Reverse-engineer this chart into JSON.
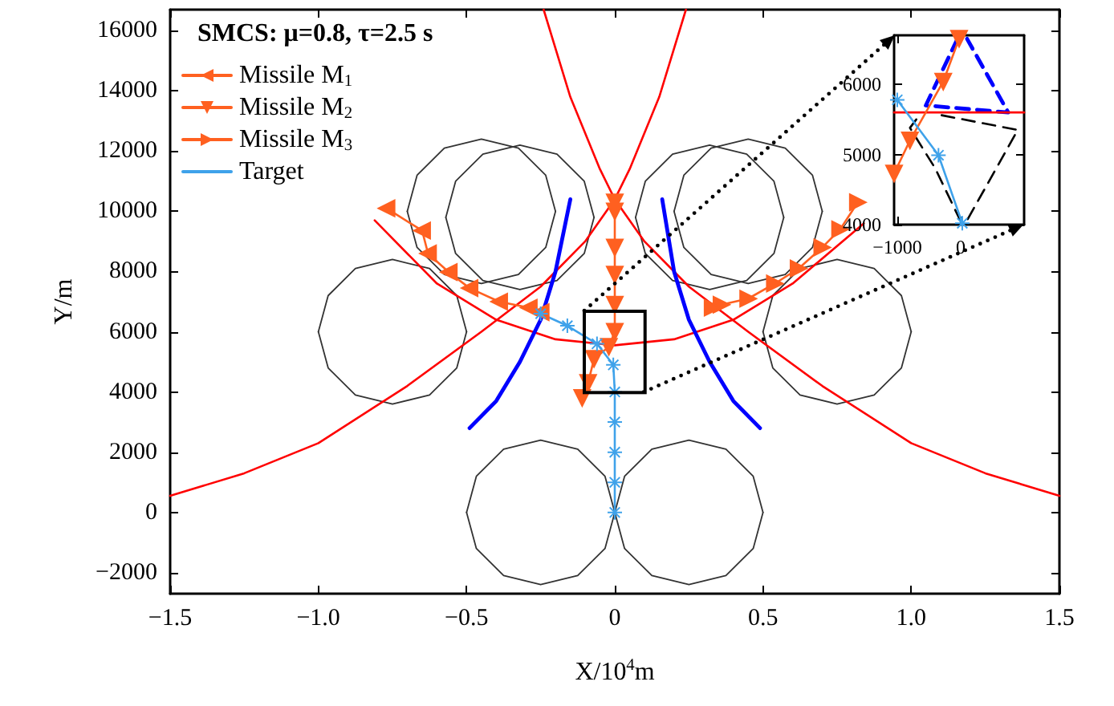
{
  "chart_data": [
    {
      "type": "line",
      "xlabel": "X/10$^{4}$m",
      "ylabel": "Y/m",
      "legend_title": "SMCS: μ=0.8, τ=2.5 s",
      "legend": "top left",
      "marker": "none",
      "xlim": [
        -1.5,
        1.5
      ],
      "ylim": [
        -2700,
        16700
      ],
      "xticks": [
        {
          "value": -1.5,
          "label": "−1.5"
        },
        {
          "value": -1,
          "label": "−1.0"
        },
        {
          "value": -0.5,
          "label": "−0.5"
        },
        0,
        0.5,
        {
          "value": 1,
          "label": "1.0"
        },
        1.5
      ],
      "yticks": [
        {
          "value": -2000,
          "label": "−2000"
        },
        0,
        2000,
        4000,
        6000,
        8000,
        10000,
        12000,
        14000,
        16000
      ],
      "series": [
        {
          "type": "line",
          "color": "#333333",
          "x": [
            0,
            -0.033,
            -0.125,
            -0.25,
            -0.375,
            -0.467,
            -0.5
          ],
          "values": [
            0,
            1200,
            2100,
            2400,
            2100,
            1200,
            0
          ]
        },
        {
          "type": "line",
          "color": "#333333",
          "x": [
            -0.5,
            -0.467,
            -0.375,
            -0.25,
            -0.125,
            -0.033,
            0
          ],
          "values": [
            0,
            -1200,
            -2100,
            -2400,
            -2100,
            -1200,
            0
          ]
        },
        {
          "type": "line",
          "color": "#333333",
          "x": [
            0.5,
            0.467,
            0.375,
            0.25,
            0.125,
            0.033,
            0
          ],
          "values": [
            0,
            1200,
            2100,
            2400,
            2100,
            1200,
            0
          ]
        },
        {
          "type": "line",
          "color": "#333333",
          "x": [
            0,
            0.033,
            0.125,
            0.25,
            0.375,
            0.467,
            0.5
          ],
          "values": [
            0,
            -1200,
            -2100,
            -2400,
            -2100,
            -1200,
            0
          ]
        },
        {
          "type": "line",
          "color": "#333333",
          "x": [
            -0.5,
            -0.533,
            -0.625,
            -0.75,
            -0.875,
            -0.967,
            -1
          ],
          "values": [
            6000,
            7200,
            8100,
            8400,
            8100,
            7200,
            6000
          ]
        },
        {
          "type": "line",
          "color": "#333333",
          "x": [
            -1,
            -0.967,
            -0.875,
            -0.75,
            -0.625,
            -0.533,
            -0.5
          ],
          "values": [
            6000,
            4800,
            3900,
            3600,
            3900,
            4800,
            6000
          ]
        },
        {
          "type": "line",
          "color": "#333333",
          "x": [
            1,
            0.967,
            0.875,
            0.75,
            0.625,
            0.533,
            0.5
          ],
          "values": [
            6000,
            7200,
            8100,
            8400,
            8100,
            7200,
            6000
          ]
        },
        {
          "type": "line",
          "color": "#333333",
          "x": [
            0.5,
            0.533,
            0.625,
            0.75,
            0.875,
            0.967,
            1
          ],
          "values": [
            6000,
            4800,
            3900,
            3600,
            3900,
            4800,
            6000
          ]
        },
        {
          "type": "line",
          "color": "#333333",
          "x": [
            -0.2,
            -0.233,
            -0.325,
            -0.45,
            -0.575,
            -0.667,
            -0.7
          ],
          "values": [
            10000,
            11200,
            12100,
            12400,
            12100,
            11200,
            10000
          ]
        },
        {
          "type": "line",
          "color": "#333333",
          "x": [
            -0.7,
            -0.667,
            -0.575,
            -0.45,
            -0.325,
            -0.233,
            -0.2
          ],
          "values": [
            10000,
            8800,
            7900,
            7600,
            7900,
            8800,
            10000
          ]
        },
        {
          "type": "line",
          "color": "#333333",
          "x": [
            -0.07,
            -0.103,
            -0.195,
            -0.32,
            -0.445,
            -0.537,
            -0.57
          ],
          "values": [
            9800,
            11000,
            11900,
            12200,
            11900,
            11000,
            9800
          ]
        },
        {
          "type": "line",
          "color": "#333333",
          "x": [
            -0.57,
            -0.537,
            -0.445,
            -0.32,
            -0.195,
            -0.103,
            -0.07
          ],
          "values": [
            9800,
            8600,
            7700,
            7400,
            7700,
            8600,
            9800
          ]
        },
        {
          "type": "line",
          "color": "#333333",
          "x": [
            0.7,
            0.667,
            0.575,
            0.45,
            0.325,
            0.233,
            0.2
          ],
          "values": [
            10000,
            11200,
            12100,
            12400,
            12100,
            11200,
            10000
          ]
        },
        {
          "type": "line",
          "color": "#333333",
          "x": [
            0.2,
            0.233,
            0.325,
            0.45,
            0.575,
            0.667,
            0.7
          ],
          "values": [
            10000,
            8800,
            7900,
            7600,
            7900,
            8800,
            10000
          ]
        },
        {
          "type": "line",
          "color": "#333333",
          "x": [
            0.57,
            0.537,
            0.445,
            0.32,
            0.195,
            0.103,
            0.07
          ],
          "values": [
            9800,
            11000,
            11900,
            12200,
            11900,
            11000,
            9800
          ]
        },
        {
          "type": "line",
          "color": "#333333",
          "x": [
            0.07,
            0.103,
            0.195,
            0.32,
            0.445,
            0.537,
            0.57
          ],
          "values": [
            9800,
            8600,
            7700,
            7400,
            7700,
            8600,
            9800
          ]
        },
        {
          "type": "line",
          "color": "#ff0000",
          "x": [
            -0.81,
            -0.6,
            -0.4,
            -0.2,
            0,
            0.2,
            0.4,
            0.6,
            0.84
          ],
          "values": [
            9700,
            7600,
            6400,
            5750,
            5550,
            5750,
            6400,
            7600,
            9600
          ]
        },
        {
          "type": "line",
          "color": "#ff0000",
          "x": [
            -0.24,
            -0.15,
            -0.05,
            0,
            0.1,
            0.25,
            0.45,
            0.7,
            1,
            1.25,
            1.5
          ],
          "values": [
            16700,
            13800,
            11400,
            10400,
            9000,
            7500,
            6000,
            4200,
            2300,
            1300,
            550
          ]
        },
        {
          "type": "line",
          "color": "#ff0000",
          "x": [
            0.24,
            0.15,
            0.05,
            0,
            -0.1,
            -0.25,
            -0.45,
            -0.7,
            -1,
            -1.25,
            -1.5
          ],
          "values": [
            16700,
            13800,
            11400,
            10400,
            9000,
            7500,
            6000,
            4200,
            2300,
            1300,
            550
          ]
        },
        {
          "type": "line",
          "color": "#0000ff",
          "x": [
            -0.49,
            -0.4,
            -0.32,
            -0.25,
            -0.2,
            -0.15
          ],
          "values": [
            2800,
            3700,
            5000,
            6400,
            8000,
            10400
          ]
        },
        {
          "type": "line",
          "color": "#0000ff",
          "x": [
            0.49,
            0.4,
            0.32,
            0.25,
            0.2,
            0.16
          ],
          "values": [
            2800,
            3700,
            5000,
            6400,
            8000,
            10400
          ]
        },
        {
          "type": "line",
          "name": "Missile M$_{1}$",
          "color": "#ff6020",
          "marker": "triangle",
          "x": [
            -0.77,
            -0.65,
            -0.63,
            -0.56,
            -0.49,
            -0.39,
            -0.29,
            -0.25
          ],
          "values": [
            10100,
            9360,
            8600,
            7980,
            7450,
            7000,
            6800,
            6650
          ]
        },
        {
          "type": "line",
          "name": "Missile M$_{2}$",
          "color": "#ff6020",
          "marker": "triangle",
          "x": [
            0,
            0,
            0,
            0,
            0,
            0,
            -0.02,
            -0.07,
            -0.09,
            -0.11
          ],
          "values": [
            10300,
            10000,
            8800,
            7900,
            6900,
            6000,
            5500,
            5100,
            4300,
            3800
          ]
        },
        {
          "type": "line",
          "name": "Missile M$_{3}$",
          "color": "#ff6020",
          "marker": "triangle",
          "x": [
            0.82,
            0.76,
            0.7,
            0.62,
            0.54,
            0.45,
            0.36,
            0.33
          ],
          "values": [
            10300,
            9400,
            8800,
            8100,
            7600,
            7100,
            6900,
            6800
          ]
        },
        {
          "type": "line",
          "name": "Target",
          "color": "#3fa2ea",
          "marker": "cross",
          "x": [
            0,
            0,
            0,
            0,
            0,
            -0.005,
            -0.06,
            -0.16,
            -0.25
          ],
          "values": [
            0,
            1000,
            2000,
            3000,
            4000,
            4900,
            5600,
            6200,
            6600
          ]
        }
      ]
    },
    {
      "type": "line",
      "marker": "none",
      "xlim": [
        -1050,
        1000
      ],
      "ylim": [
        4000,
        6700
      ],
      "xticks": [
        {
          "value": -1000,
          "label": "−1000"
        },
        0
      ],
      "yticks": [
        4000,
        5000,
        6000
      ],
      "series": [
        {
          "type": "line",
          "color": "#0000ff",
          "line_style": "dashed",
          "x": [
            -50,
            -550,
            750,
            100
          ],
          "values": [
            6650,
            5700,
            5600,
            6650
          ]
        },
        {
          "type": "line",
          "color": "#ff0000",
          "x": [
            -1050,
            1000
          ],
          "values": [
            5600,
            5600
          ]
        },
        {
          "type": "line",
          "color": "#000000",
          "line_style": "dashed",
          "x": [
            -700,
            -800,
            -400,
            25
          ],
          "values": [
            5500,
            5380,
            4800,
            4000
          ]
        },
        {
          "type": "line",
          "color": "#000000",
          "line_style": "dashed",
          "x": [
            -300,
            900,
            75
          ],
          "values": [
            5560,
            5350,
            4020
          ]
        },
        {
          "type": "line",
          "color": "#ff6020",
          "marker": "triangle",
          "x": [
            -1050,
            -800,
            -275,
            -25
          ],
          "values": [
            4730,
            5200,
            6040,
            6650
          ]
        },
        {
          "type": "line",
          "color": "#3fa2ea",
          "marker": "cross",
          "x": [
            -1000,
            -350,
            25
          ],
          "values": [
            5780,
            4990,
            4020
          ]
        }
      ]
    }
  ]
}
